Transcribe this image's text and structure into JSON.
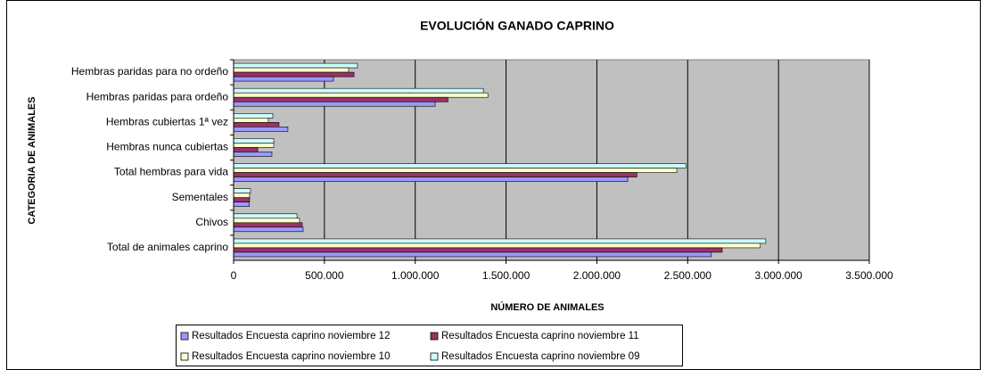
{
  "chart_data": {
    "type": "hbar",
    "title": "EVOLUCIÓN GANADO CAPRINO",
    "x_label": "NÚMERO DE ANIMALES",
    "y_label": "CATEGORIA DE ANIMALES",
    "categories": [
      "Hembras paridas para no ordeño",
      "Hembras paridas para ordeño",
      "Hembras cubiertas 1ª vez",
      "Hembras nunca cubiertas",
      "Total hembras para vida",
      "Sementales",
      "Chivos",
      "Total de animales caprino"
    ],
    "series": [
      {
        "name": "Resultados Encuesta caprino noviembre 09",
        "color": "#ccffff",
        "values": [
          682000,
          1375000,
          216000,
          221000,
          2490000,
          93000,
          349000,
          2930000
        ]
      },
      {
        "name": "Resultados Encuesta caprino noviembre 10",
        "color": "#ffffcc",
        "values": [
          633000,
          1400000,
          191000,
          221000,
          2440000,
          88000,
          363000,
          2900000
        ]
      },
      {
        "name": "Resultados Encuesta caprino noviembre 11",
        "color": "#993366",
        "values": [
          663000,
          1180000,
          250000,
          133000,
          2220000,
          88000,
          378000,
          2690000
        ]
      },
      {
        "name": "Resultados Encuesta caprino noviembre 12",
        "color": "#9999ff",
        "values": [
          550000,
          1110000,
          299000,
          211000,
          2170000,
          87000,
          383000,
          2630000
        ]
      }
    ],
    "legend_order": [
      3,
      2,
      1,
      0
    ],
    "xlim": [
      0,
      3500000
    ],
    "xticks": [
      0,
      {
        "value": 500000,
        "label": "500.000"
      },
      {
        "value": 1000000,
        "label": "1.000.000"
      },
      {
        "value": 1500000,
        "label": "1.500.000"
      },
      {
        "value": 2000000,
        "label": "2.000.000"
      },
      {
        "value": 2500000,
        "label": "2.500.000"
      },
      {
        "value": 3000000,
        "label": "3.000.000"
      },
      {
        "value": 3500000,
        "label": "3.500.000"
      }
    ],
    "grid": true,
    "plot_background": "#c0c0c0"
  }
}
